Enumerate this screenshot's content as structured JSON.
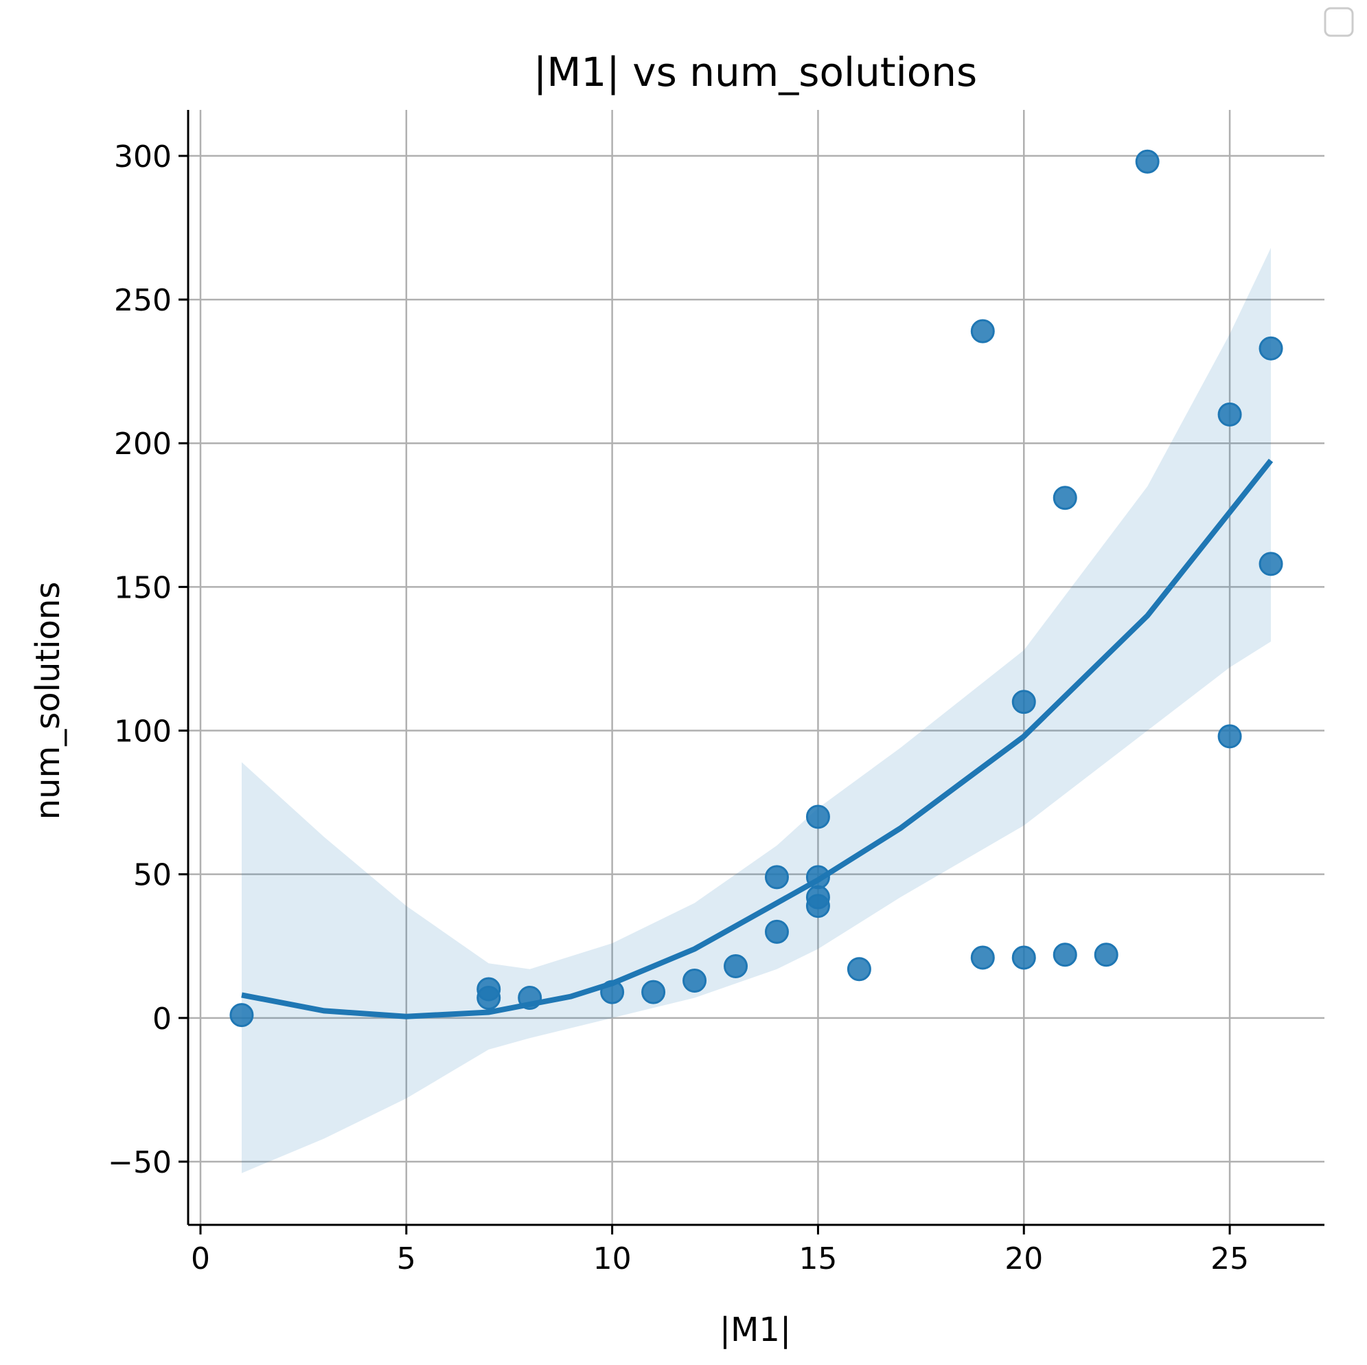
{
  "chart_data": {
    "type": "scatter",
    "title": "|M1| vs num_solutions",
    "xlabel": "|M1|",
    "ylabel": "num_solutions",
    "xlim": [
      -0.3,
      27.3
    ],
    "ylim": [
      -72,
      316
    ],
    "xticks": [
      0,
      5,
      10,
      15,
      20,
      25
    ],
    "yticks": [
      -50,
      0,
      50,
      100,
      150,
      200,
      250,
      300
    ],
    "xtick_labels": [
      "0",
      "5",
      "10",
      "15",
      "20",
      "25"
    ],
    "ytick_labels": [
      "−50",
      "0",
      "50",
      "100",
      "150",
      "200",
      "250",
      "300"
    ],
    "grid": true,
    "legend": "top-right (empty)",
    "colors": {
      "points": "#1f77b4",
      "fit_line": "#1f77b4",
      "confidence_band": "#1f77b4",
      "grid": "#b0b0b0",
      "axes": "#000000"
    },
    "points": [
      {
        "x": 1,
        "y": 1
      },
      {
        "x": 7,
        "y": 7
      },
      {
        "x": 7,
        "y": 10
      },
      {
        "x": 8,
        "y": 7
      },
      {
        "x": 10,
        "y": 9
      },
      {
        "x": 11,
        "y": 9
      },
      {
        "x": 12,
        "y": 13
      },
      {
        "x": 13,
        "y": 18
      },
      {
        "x": 14,
        "y": 30
      },
      {
        "x": 14,
        "y": 49
      },
      {
        "x": 15,
        "y": 39
      },
      {
        "x": 15,
        "y": 42
      },
      {
        "x": 15,
        "y": 49
      },
      {
        "x": 15,
        "y": 70
      },
      {
        "x": 16,
        "y": 17
      },
      {
        "x": 19,
        "y": 21
      },
      {
        "x": 19,
        "y": 239
      },
      {
        "x": 20,
        "y": 21
      },
      {
        "x": 20,
        "y": 110
      },
      {
        "x": 21,
        "y": 22
      },
      {
        "x": 21,
        "y": 181
      },
      {
        "x": 22,
        "y": 22
      },
      {
        "x": 23,
        "y": 298
      },
      {
        "x": 25,
        "y": 98
      },
      {
        "x": 25,
        "y": 210
      },
      {
        "x": 26,
        "y": 158
      },
      {
        "x": 26,
        "y": 233
      }
    ],
    "fit": {
      "type": "quadratic",
      "x": [
        1,
        3,
        5,
        7,
        9,
        10,
        12,
        14,
        15,
        17,
        20,
        23,
        26
      ],
      "y": [
        8,
        2.5,
        0.5,
        2,
        7.5,
        12,
        24,
        40,
        48,
        66,
        98,
        140,
        194
      ]
    },
    "confidence_band": {
      "x": [
        1,
        3,
        5,
        7,
        8,
        10,
        12,
        14,
        15,
        17,
        20,
        23,
        25,
        26
      ],
      "lower": [
        -54,
        -42,
        -28,
        -11,
        -7,
        0,
        7,
        17,
        24,
        42,
        67,
        100,
        122,
        131
      ],
      "upper": [
        89,
        63,
        39,
        19,
        17,
        26,
        40,
        60,
        73,
        94,
        128,
        185,
        238,
        268
      ]
    }
  }
}
